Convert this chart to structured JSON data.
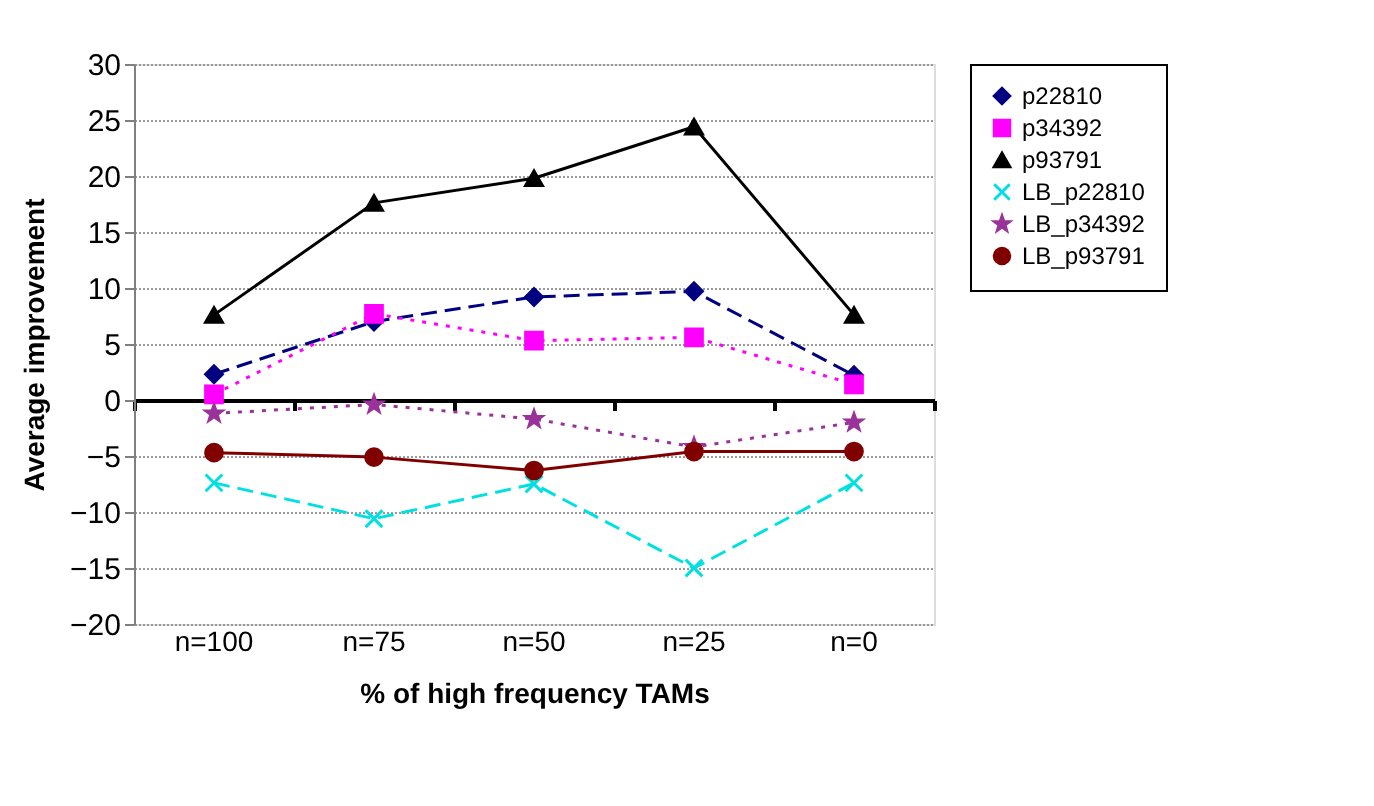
{
  "chart_data": {
    "type": "line",
    "xlabel": "% of high frequency TAMs",
    "ylabel": "Average improvement",
    "categories": [
      "n=100",
      "n=75",
      "n=50",
      "n=25",
      "n=0"
    ],
    "ylim": [
      -20,
      30
    ],
    "yticks": [
      -20,
      -15,
      -10,
      -5,
      0,
      5,
      10,
      15,
      20,
      25,
      30
    ],
    "grid": "y",
    "legend": "right",
    "series": [
      {
        "name": "p22810",
        "color": "#000080",
        "marker": "diamond",
        "line_style": "dashed",
        "values": [
          2.3,
          7,
          9.2,
          9.7,
          2.2
        ]
      },
      {
        "name": "p34392",
        "color": "#ff00ff",
        "marker": "square",
        "line_style": "dotted",
        "values": [
          0.5,
          7.7,
          5.3,
          5.6,
          1.4
        ]
      },
      {
        "name": "p93791",
        "color": "#000000",
        "marker": "triangle",
        "line_style": "solid",
        "values": [
          7.6,
          17.6,
          19.8,
          24.4,
          7.6
        ]
      },
      {
        "name": "LB_p22810",
        "color": "#00e0e0",
        "marker": "cross",
        "line_style": "dashed",
        "values": [
          -7.4,
          -10.6,
          -7.5,
          -15,
          -7.4
        ]
      },
      {
        "name": "LB_p34392",
        "color": "#993399",
        "marker": "star",
        "line_style": "dotted",
        "values": [
          -1.2,
          -0.4,
          -1.7,
          -4.2,
          -2
        ]
      },
      {
        "name": "LB_p93791",
        "color": "#800000",
        "marker": "circle",
        "line_style": "solid",
        "values": [
          -4.7,
          -5.1,
          -6.3,
          -4.6,
          -4.6
        ]
      }
    ]
  }
}
